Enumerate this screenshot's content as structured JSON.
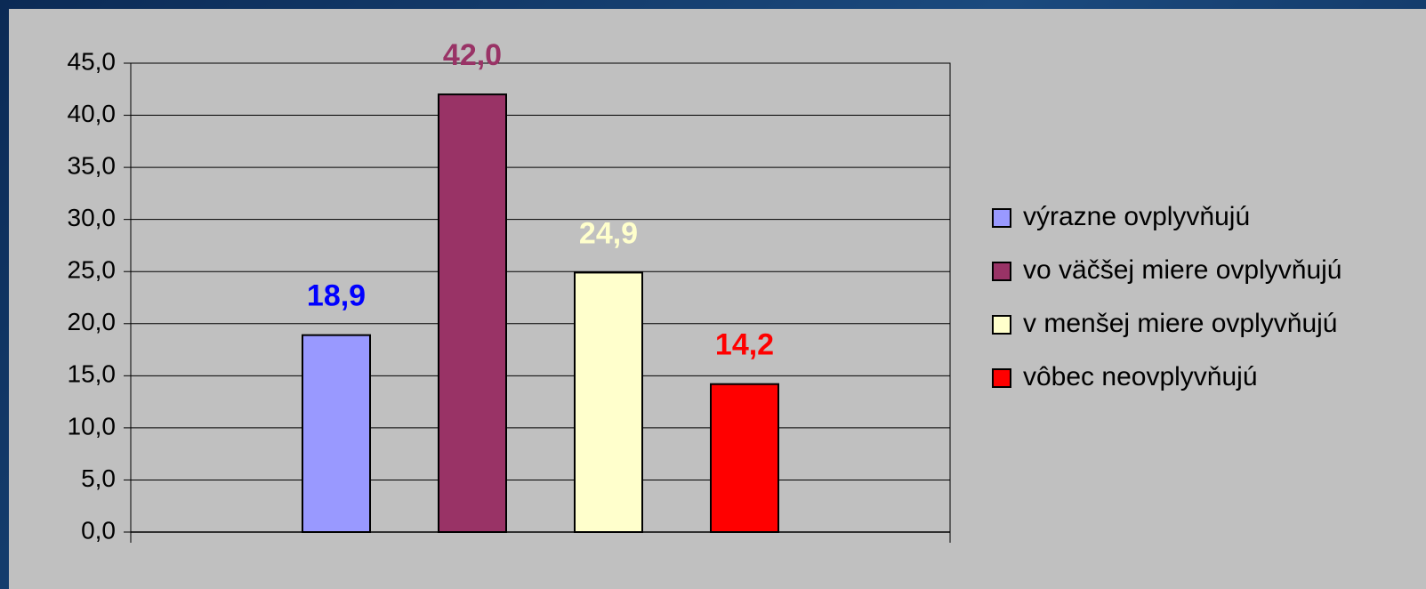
{
  "chart_data": {
    "type": "bar",
    "categories": [
      null
    ],
    "series": [
      {
        "name": "výrazne ovplyvňujú",
        "color": "#9999ff",
        "label_color": "#0000ff",
        "values": [
          18.9
        ],
        "value_labels": [
          "18,9"
        ]
      },
      {
        "name": "vo väčšej miere ovplyvňujú",
        "color": "#993366",
        "label_color": "#993366",
        "values": [
          42.0
        ],
        "value_labels": [
          "42,0"
        ]
      },
      {
        "name": "v menšej miere ovplyvňujú",
        "color": "#ffffcc",
        "label_color": "#ffffcc",
        "values": [
          24.9
        ],
        "value_labels": [
          "24,9"
        ]
      },
      {
        "name": "vôbec neovplyvňujú",
        "color": "#ff0000",
        "label_color": "#ff0000",
        "values": [
          14.2
        ],
        "value_labels": [
          "14,2"
        ]
      }
    ],
    "ylim": [
      0,
      45
    ],
    "yticks": [
      {
        "value": 0,
        "label": "0,0"
      },
      {
        "value": 5,
        "label": "5,0"
      },
      {
        "value": 10,
        "label": "10,0"
      },
      {
        "value": 15,
        "label": "15,0"
      },
      {
        "value": 20,
        "label": "20,0"
      },
      {
        "value": 25,
        "label": "25,0"
      },
      {
        "value": 30,
        "label": "30,0"
      },
      {
        "value": 35,
        "label": "35,0"
      },
      {
        "value": 40,
        "label": "40,0"
      },
      {
        "value": 45,
        "label": "45,0"
      }
    ],
    "grid": true,
    "legend": "right"
  }
}
